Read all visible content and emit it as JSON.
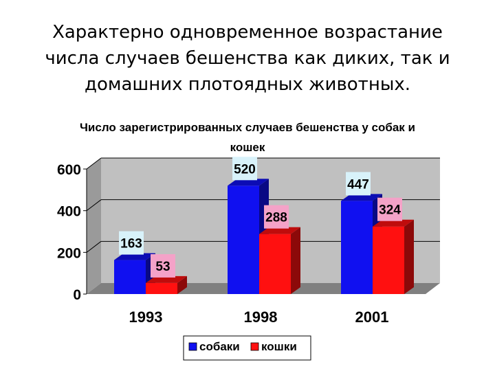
{
  "slide": {
    "title_lines": [
      "Характерно одновременное возрастание",
      "числа случаев бешенства как диких, так и",
      "домашних плотоядных животных."
    ]
  },
  "chart_data": {
    "type": "bar",
    "title_lines": [
      "Число зарегистрированных случаев бешенства у собак и",
      "кошек"
    ],
    "categories": [
      "1993",
      "1998",
      "2001"
    ],
    "series": [
      {
        "name": "собаки",
        "values": [
          163,
          520,
          447
        ],
        "color": "#1010f0",
        "label_bg": "#d8f2fa"
      },
      {
        "name": "кошки",
        "values": [
          53,
          288,
          324
        ],
        "color": "#ff1010",
        "label_bg": "#f4a2c8"
      }
    ],
    "yticks": [
      0,
      200,
      400,
      600
    ],
    "ylim": [
      0,
      600
    ],
    "grid": true,
    "style": "3d",
    "legend_position": "bottom"
  }
}
